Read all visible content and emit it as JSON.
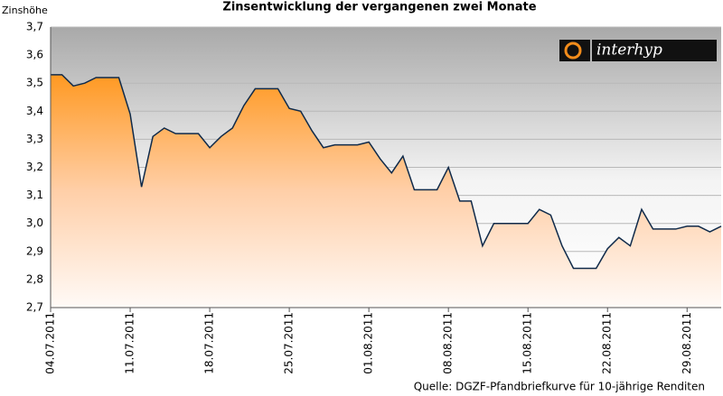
{
  "chart_data": {
    "type": "area",
    "title": "Zinsentwicklung der vergangenen zwei Monate",
    "y_label": "Zinshöhe",
    "source": "Quelle: DGZF-Pfandbriefkurve für 10-jährige Renditen",
    "logo": "interhyp",
    "categories": [
      "04.07.2011",
      null,
      null,
      null,
      null,
      null,
      null,
      "11.07.2011",
      null,
      null,
      null,
      null,
      null,
      null,
      "18.07.2011",
      null,
      null,
      null,
      null,
      null,
      null,
      "25.07.2011",
      null,
      null,
      null,
      null,
      null,
      null,
      "01.08.2011",
      null,
      null,
      null,
      null,
      null,
      null,
      "08.08.2011",
      null,
      null,
      null,
      null,
      null,
      null,
      "15.08.2011",
      null,
      null,
      null,
      null,
      null,
      null,
      "22.08.2011",
      null,
      null,
      null,
      null,
      null,
      null,
      "29.08.2011",
      null,
      null,
      null
    ],
    "values": [
      3.53,
      3.53,
      3.49,
      3.5,
      3.52,
      3.52,
      3.52,
      3.39,
      3.13,
      3.31,
      3.34,
      3.32,
      3.32,
      3.32,
      3.27,
      3.31,
      3.34,
      3.42,
      3.48,
      3.48,
      3.48,
      3.41,
      3.4,
      3.33,
      3.27,
      3.28,
      3.28,
      3.28,
      3.29,
      3.23,
      3.18,
      3.24,
      3.12,
      3.12,
      3.12,
      3.2,
      3.08,
      3.08,
      2.92,
      3.0,
      3.0,
      3.0,
      3.0,
      3.05,
      3.03,
      2.92,
      2.84,
      2.84,
      2.84,
      2.91,
      2.95,
      2.92,
      3.05,
      2.98,
      2.98,
      2.98,
      2.99,
      2.99,
      2.97,
      2.99
    ],
    "color": "#0f2a4a",
    "ylim": [
      2.7,
      3.7
    ],
    "yticks": [
      {
        "value": 2.7,
        "label": "2,7"
      },
      {
        "value": 2.8,
        "label": "2,8"
      },
      {
        "value": 2.9,
        "label": "2,9"
      },
      {
        "value": 3.0,
        "label": "3,0"
      },
      {
        "value": 3.1,
        "label": "3,1"
      },
      {
        "value": 3.2,
        "label": "3,2"
      },
      {
        "value": 3.3,
        "label": "3,3"
      },
      {
        "value": 3.4,
        "label": "3,4"
      },
      {
        "value": 3.5,
        "label": "3,5"
      },
      {
        "value": 3.6,
        "label": "3,6"
      },
      {
        "value": 3.7,
        "label": "3,7"
      }
    ],
    "grid": true
  }
}
